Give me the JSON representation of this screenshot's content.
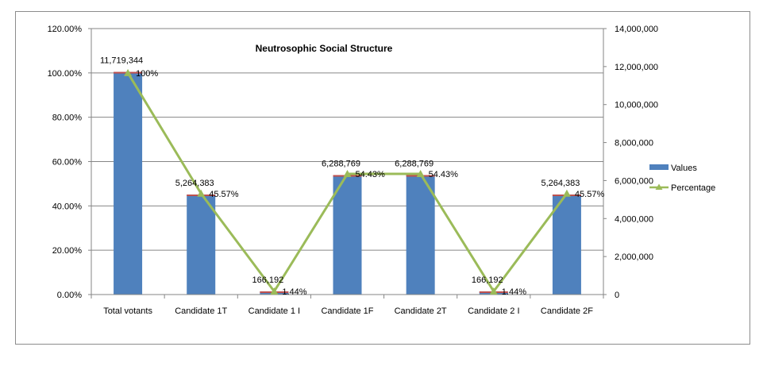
{
  "chart_data": {
    "type": "bar",
    "title": "Neutrosophic Social Structure",
    "categories": [
      "Total votants",
      "Candidate 1T",
      "Candidate 1 I",
      "Candidate 1F",
      "Candidate 2T",
      "Candidate 2 I",
      "Candidate 2F"
    ],
    "series": [
      {
        "name": "Values",
        "type": "bar",
        "axis": "secondary",
        "values": [
          11719344,
          5264383,
          166192,
          6288769,
          6288769,
          166192,
          5264383
        ],
        "labels": [
          "11,719,344",
          "5,264,383",
          "166,192",
          "6,288,769",
          "6,288,769",
          "166,192",
          "5,264,383"
        ],
        "color": "#4f81bd"
      },
      {
        "name": "Percentage",
        "type": "line",
        "axis": "primary",
        "values": [
          100,
          45.57,
          1.44,
          54.43,
          54.43,
          1.44,
          45.57
        ],
        "labels": [
          "100%",
          "45.57%",
          "1.44%",
          "54.43%",
          "54.43%",
          "1.44%",
          "45.57%"
        ],
        "color": "#9bbb59"
      }
    ],
    "y_left": {
      "ylim": [
        0,
        120
      ],
      "ticks": [
        0,
        20,
        40,
        60,
        80,
        100,
        120
      ],
      "tick_labels": [
        "0.00%",
        "20.00%",
        "40.00%",
        "60.00%",
        "80.00%",
        "100.00%",
        "120.00%"
      ]
    },
    "y_right": {
      "ylim": [
        0,
        14000000
      ],
      "ticks": [
        0,
        2000000,
        4000000,
        6000000,
        8000000,
        10000000,
        12000000,
        14000000
      ],
      "tick_labels": [
        "0",
        "2,000,000",
        "4,000,000",
        "6,000,000",
        "8,000,000",
        "10,000,000",
        "12,000,000",
        "14,000,000"
      ]
    },
    "grid": true,
    "legend_position": "right"
  }
}
